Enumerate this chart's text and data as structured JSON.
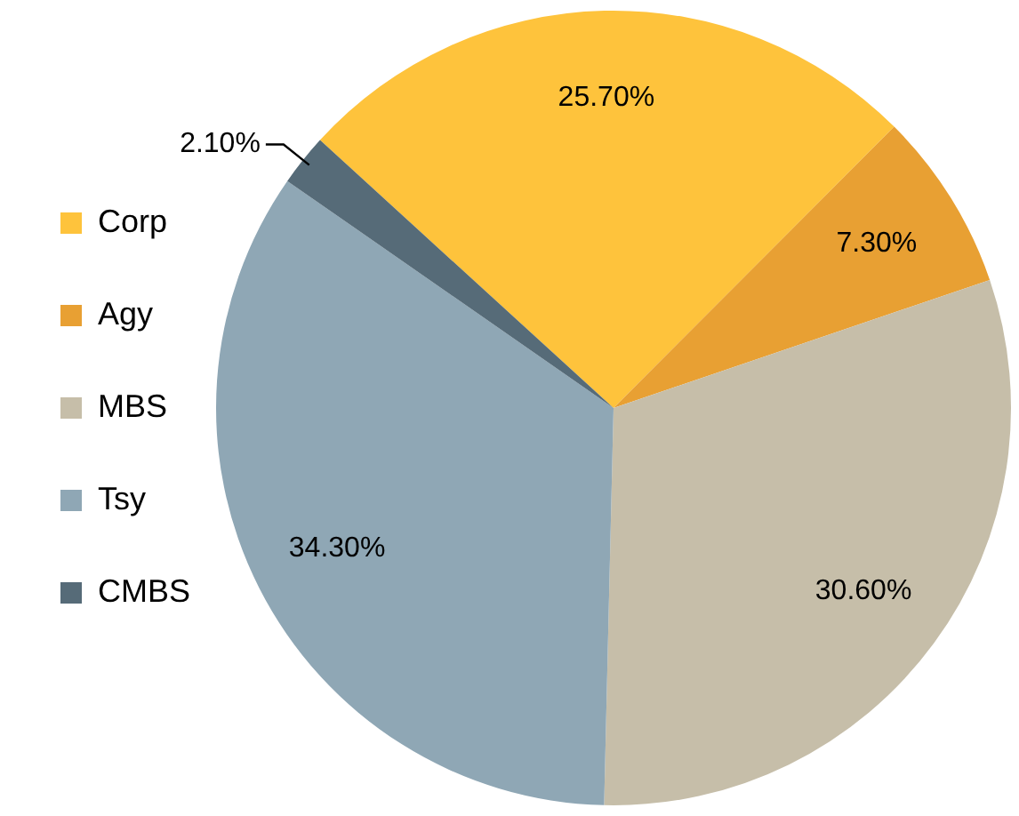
{
  "chart_data": {
    "type": "pie",
    "categories": [
      "Corp",
      "Agy",
      "MBS",
      "Tsy",
      "CMBS"
    ],
    "values": [
      25.7,
      7.3,
      30.6,
      34.3,
      2.1
    ],
    "colors": [
      "#fec33c",
      "#e8a033",
      "#c6bea9",
      "#8fa7b5",
      "#566b78"
    ],
    "value_labels": [
      "25.70%",
      "7.30%",
      "30.60%",
      "34.30%",
      "2.10%"
    ],
    "legend": "left"
  }
}
